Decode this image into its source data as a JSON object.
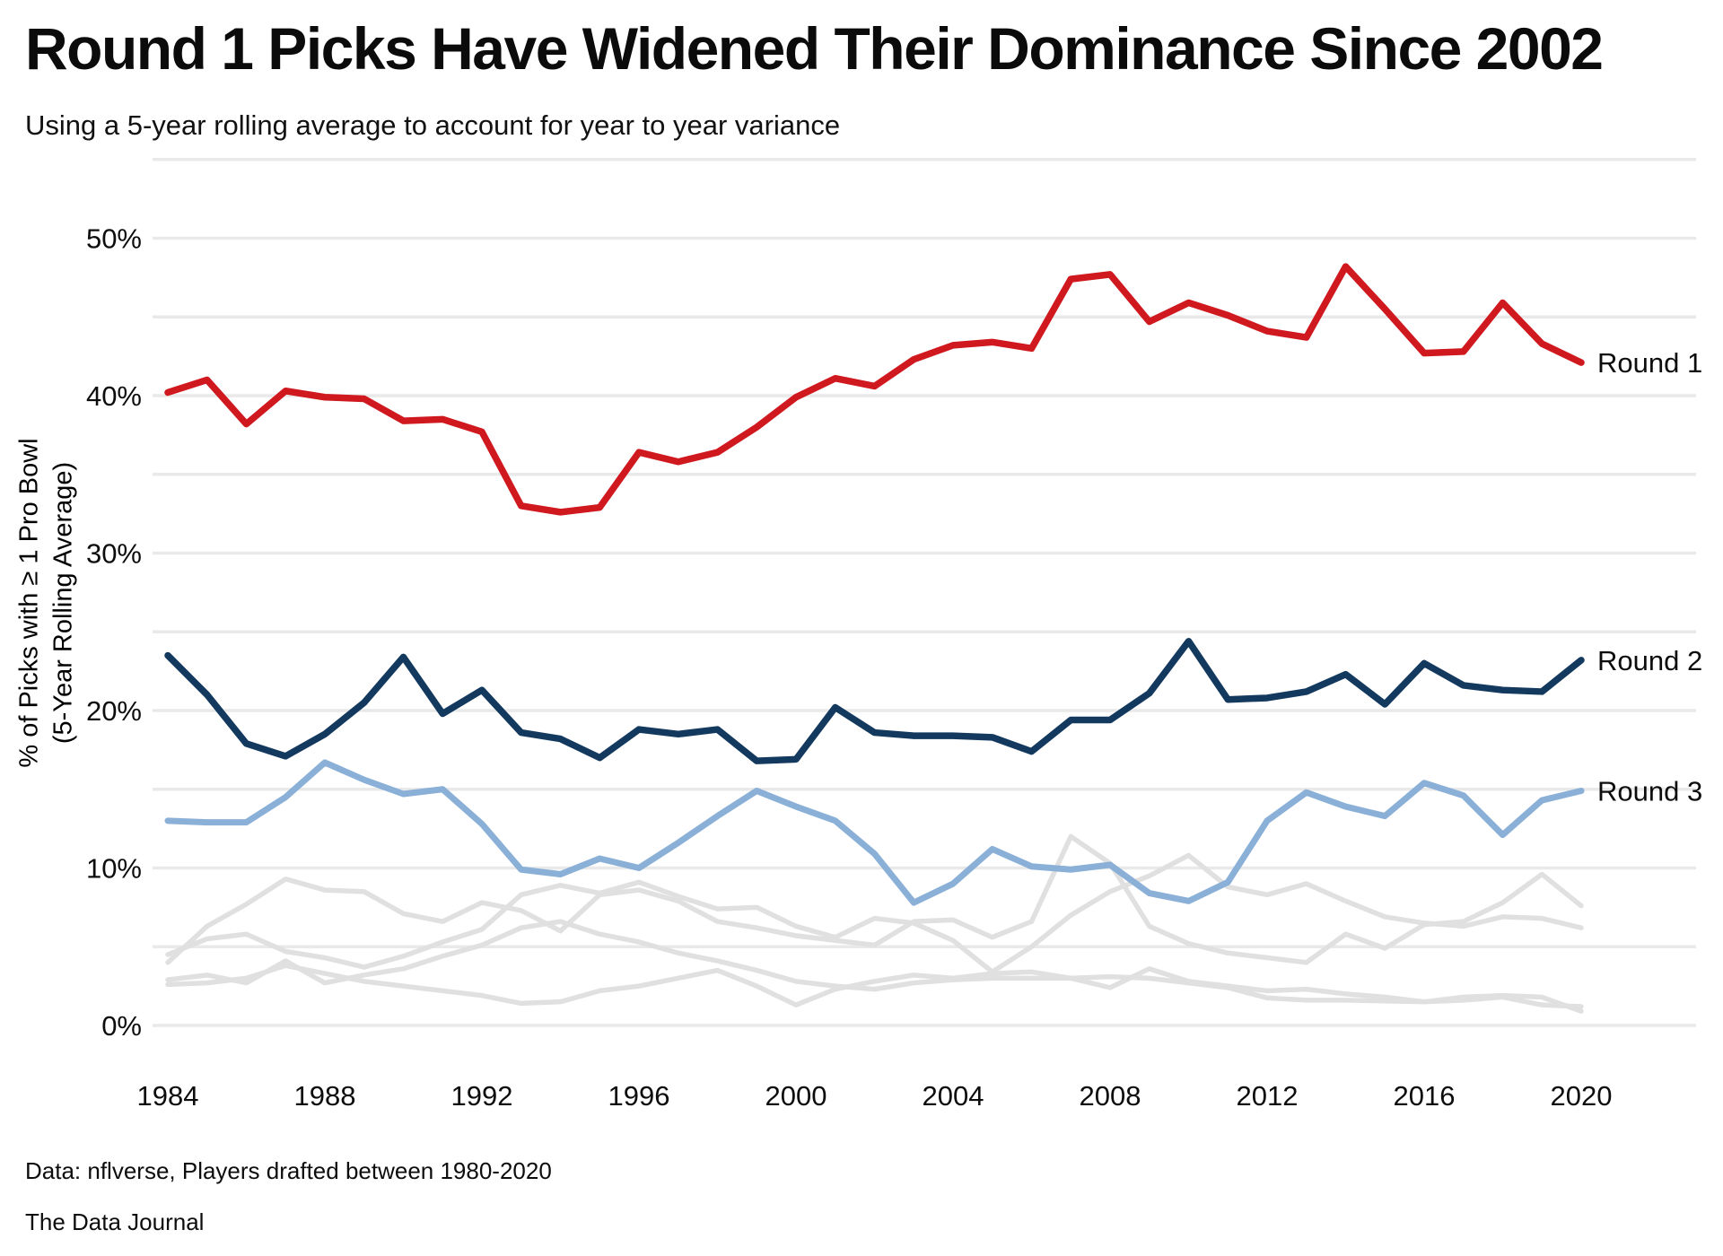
{
  "page": {
    "footer": {
      "source": "Data: nflverse, Players drafted between 1980-2020",
      "brand": "The Data Journal"
    }
  },
  "chart_data": {
    "type": "line",
    "title": "Round 1 Picks Have Widened Their Dominance Since 2002",
    "subtitle": "Using a 5-year rolling average to account for year to year variance",
    "xlabel": "",
    "ylabel_line1": "% of Picks with ≥ 1 Pro Bowl",
    "ylabel_line2": "(5-Year Rolling Average)",
    "xlim": [
      1984,
      2020
    ],
    "ylim": [
      0,
      55
    ],
    "grid": "horizontal gridlines every 5%",
    "legend": "direct labels at right end of lines",
    "grid_color": "#e9e9e9",
    "text_color": "#0d0d0d",
    "y_ticks": [
      0,
      10,
      20,
      30,
      40,
      50
    ],
    "y_tick_suffix": "%",
    "y_minor_step": 5,
    "x_ticks": [
      1984,
      1988,
      1992,
      1996,
      2000,
      2004,
      2008,
      2012,
      2016,
      2020
    ],
    "x": [
      1984,
      1985,
      1986,
      1987,
      1988,
      1989,
      1990,
      1991,
      1992,
      1993,
      1994,
      1995,
      1996,
      1997,
      1998,
      1999,
      2000,
      2001,
      2002,
      2003,
      2004,
      2005,
      2006,
      2007,
      2008,
      2009,
      2010,
      2011,
      2012,
      2013,
      2014,
      2015,
      2016,
      2017,
      2018,
      2019,
      2020
    ],
    "series": [
      {
        "name": "Round 1",
        "color": "#d0181f",
        "stroke_width": 7.5,
        "labeled": true,
        "values": [
          40.2,
          41.0,
          38.2,
          40.3,
          39.9,
          39.8,
          38.4,
          38.5,
          37.7,
          33.0,
          32.6,
          32.9,
          36.4,
          35.8,
          36.4,
          38.0,
          39.9,
          41.1,
          40.6,
          42.3,
          43.2,
          43.4,
          43.0,
          47.4,
          47.7,
          44.7,
          45.9,
          45.1,
          44.1,
          43.7,
          48.2,
          45.5,
          42.7,
          42.8,
          45.9,
          43.3,
          42.1
        ]
      },
      {
        "name": "Round 2",
        "color": "#13395f",
        "stroke_width": 7.5,
        "labeled": true,
        "values": [
          23.5,
          21.0,
          17.9,
          17.1,
          18.5,
          20.5,
          23.4,
          19.8,
          21.3,
          18.6,
          18.2,
          17.0,
          18.8,
          18.5,
          18.8,
          16.8,
          16.9,
          20.2,
          18.6,
          18.4,
          18.4,
          18.3,
          17.4,
          19.4,
          19.4,
          21.1,
          24.4,
          20.7,
          20.8,
          21.2,
          22.3,
          20.4,
          23.0,
          21.6,
          21.3,
          21.2,
          23.2
        ]
      },
      {
        "name": "Round 3",
        "color": "#8ab0d8",
        "stroke_width": 7,
        "labeled": true,
        "values": [
          13.0,
          12.9,
          12.9,
          14.5,
          16.7,
          15.6,
          14.7,
          15.0,
          12.8,
          9.9,
          9.6,
          10.6,
          10.0,
          11.6,
          13.3,
          14.9,
          13.9,
          13.0,
          10.9,
          7.8,
          9.0,
          11.2,
          10.1,
          9.9,
          10.2,
          8.4,
          7.9,
          9.1,
          13.0,
          14.8,
          13.9,
          13.3,
          15.4,
          14.6,
          12.1,
          14.3,
          14.9
        ]
      },
      {
        "name": "unlabeled-gray-1",
        "color": "#e0e0e0",
        "stroke_width": 5.5,
        "labeled": false,
        "values": [
          4.0,
          6.3,
          7.7,
          9.3,
          8.6,
          8.5,
          7.1,
          6.6,
          7.8,
          7.3,
          6.0,
          8.3,
          8.6,
          7.9,
          6.6,
          6.2,
          5.7,
          5.4,
          5.1,
          6.6,
          6.7,
          5.6,
          6.6,
          12.0,
          10.3,
          6.3,
          5.2,
          4.6,
          4.3,
          4.0,
          5.8,
          4.9,
          6.4,
          6.6,
          7.8,
          9.6,
          7.6
        ]
      },
      {
        "name": "unlabeled-gray-2",
        "color": "#e0e0e0",
        "stroke_width": 5.5,
        "labeled": false,
        "values": [
          4.5,
          5.5,
          5.8,
          4.7,
          4.3,
          3.7,
          4.4,
          5.3,
          6.1,
          8.3,
          8.9,
          8.4,
          9.1,
          8.2,
          7.4,
          7.5,
          6.3,
          5.6,
          6.8,
          6.5,
          5.4,
          3.4,
          5.0,
          7.0,
          8.5,
          9.5,
          10.8,
          8.8,
          8.3,
          9.0,
          7.9,
          6.9,
          6.5,
          6.3,
          6.9,
          6.8,
          6.2
        ]
      },
      {
        "name": "unlabeled-gray-3",
        "color": "#e0e0e0",
        "stroke_width": 5.5,
        "labeled": false,
        "values": [
          2.9,
          3.2,
          2.7,
          4.1,
          2.7,
          3.2,
          3.6,
          4.4,
          5.1,
          6.2,
          6.6,
          5.8,
          5.3,
          4.6,
          4.1,
          3.5,
          2.8,
          2.5,
          2.3,
          2.7,
          2.9,
          3.0,
          3.0,
          3.0,
          2.4,
          3.6,
          2.8,
          2.5,
          2.2,
          2.3,
          2.0,
          1.8,
          1.5,
          1.8,
          1.9,
          1.8,
          0.9
        ]
      },
      {
        "name": "unlabeled-gray-4",
        "color": "#e0e0e0",
        "stroke_width": 5.5,
        "labeled": false,
        "values": [
          2.6,
          2.7,
          3.0,
          3.8,
          3.3,
          2.8,
          2.5,
          2.2,
          1.9,
          1.4,
          1.5,
          2.2,
          2.5,
          3.0,
          3.5,
          2.5,
          1.3,
          2.3,
          2.8,
          3.2,
          3.0,
          3.3,
          3.4,
          3.0,
          3.1,
          3.0,
          2.7,
          2.4,
          1.75,
          1.6,
          1.6,
          1.55,
          1.5,
          1.6,
          1.8,
          1.3,
          1.2
        ]
      }
    ]
  }
}
